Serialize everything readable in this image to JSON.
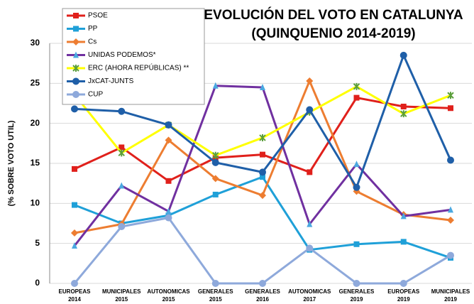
{
  "chart_data": {
    "type": "line",
    "title": "EVOLUCIÓN DEL VOTO EN CATALUNYA",
    "subtitle": "(QUINQUENIO 2014-2019)",
    "y_label": "(% SOBRE VOTO UTIL)",
    "categories": [
      "EUROPEAS 2014",
      "MUNICIPALES 2015",
      "AUTONOMICAS 2015",
      "GENERALES 2015",
      "GENERALES 2016",
      "AUTONOMICAS 2017",
      "GENERALES 2019",
      "EUROPEAS 2019",
      "MUNICIPALES 2019"
    ],
    "ylim": [
      0,
      30
    ],
    "yticks": [
      0,
      5,
      10,
      15,
      20,
      25,
      30
    ],
    "grid": true,
    "series": [
      {
        "name": "PSOE",
        "color": "#e0201b",
        "marker": "square",
        "values": [
          14.3,
          17.0,
          12.8,
          15.7,
          16.1,
          13.9,
          23.2,
          22.1,
          21.9
        ]
      },
      {
        "name": "PP",
        "color": "#1fa0d8",
        "marker": "square",
        "values": [
          9.8,
          7.5,
          8.5,
          11.1,
          13.3,
          4.2,
          4.9,
          5.2,
          3.2
        ]
      },
      {
        "name": "Cs",
        "color": "#ed7d31",
        "marker": "diamond",
        "values": [
          6.3,
          7.4,
          17.9,
          13.1,
          11.0,
          25.3,
          11.5,
          8.6,
          7.9
        ]
      },
      {
        "name": "UNIDAS PODEMOS*",
        "color": "#7030a0",
        "marker": "triangle",
        "values": [
          4.7,
          12.2,
          9.0,
          24.7,
          24.5,
          7.4,
          14.9,
          8.4,
          9.2
        ]
      },
      {
        "name": "ERC (AHORA REPÚBLICAS) **",
        "color": "#ffff00",
        "marker": "star",
        "values": [
          23.6,
          16.3,
          19.8,
          16.0,
          18.2,
          21.4,
          24.6,
          21.2,
          23.5
        ]
      },
      {
        "name": "JxCAT-JUNTS",
        "color": "#1f5fa8",
        "marker": "circle",
        "values": [
          21.8,
          21.5,
          19.8,
          15.1,
          13.9,
          21.7,
          12.0,
          28.5,
          15.4
        ]
      },
      {
        "name": "CUP",
        "color": "#8ea9db",
        "marker": "circle",
        "values": [
          0,
          7.1,
          8.2,
          0,
          0,
          4.4,
          0,
          0,
          3.5
        ]
      }
    ]
  }
}
